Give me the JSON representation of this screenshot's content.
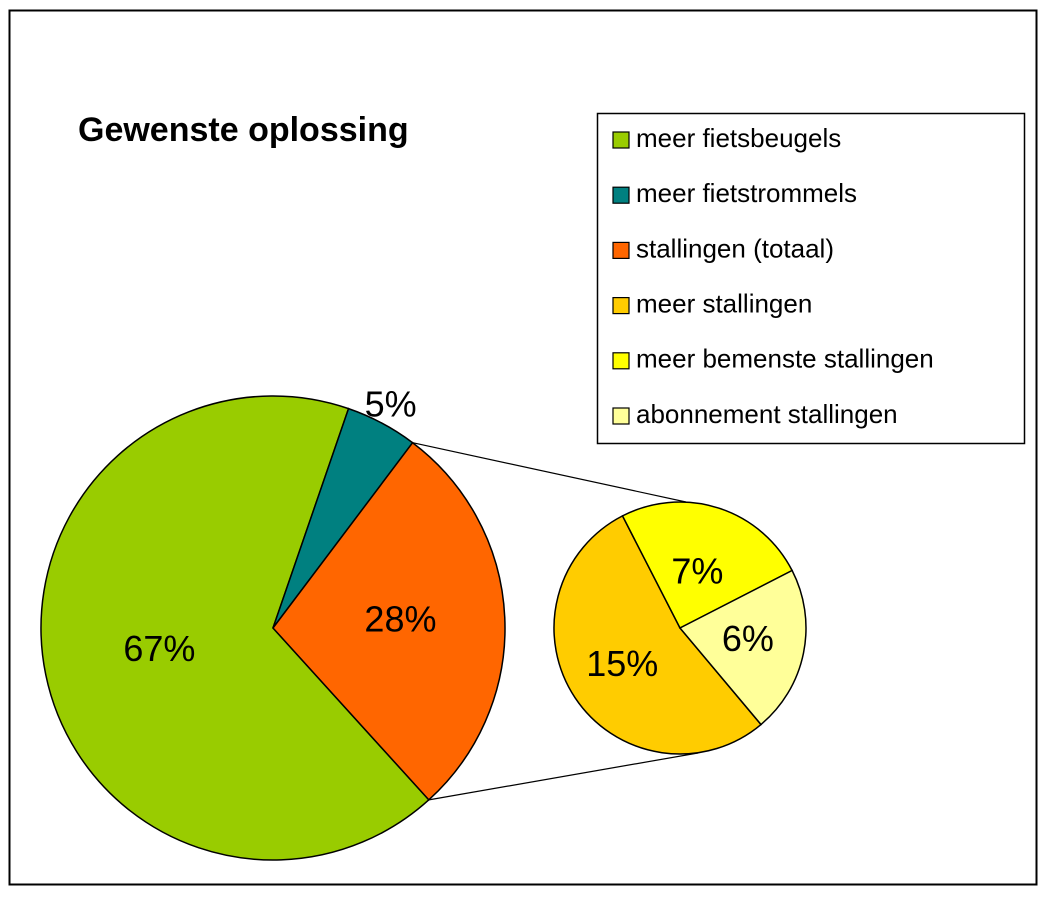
{
  "chart_data": {
    "type": "pie-of-pie",
    "title": "Gewenste oplossing",
    "categories": [
      "meer fietsbeugels",
      "meer fietstrommels",
      "stallingen (totaal)"
    ],
    "values": [
      67,
      5,
      28
    ],
    "value_labels": [
      "67%",
      "5%",
      "28%"
    ],
    "colors": [
      "#99cc00",
      "#008080",
      "#ff6600"
    ],
    "breakdown": {
      "categories": [
        "meer stallingen",
        "meer bemenste stallingen",
        "abonnement stallingen"
      ],
      "values": [
        15,
        7,
        6
      ],
      "value_labels": [
        "15%",
        "7%",
        "6%"
      ],
      "colors": [
        "#ffcc00",
        "#ffff00",
        "#ffff99"
      ]
    },
    "legend": "top-right"
  }
}
